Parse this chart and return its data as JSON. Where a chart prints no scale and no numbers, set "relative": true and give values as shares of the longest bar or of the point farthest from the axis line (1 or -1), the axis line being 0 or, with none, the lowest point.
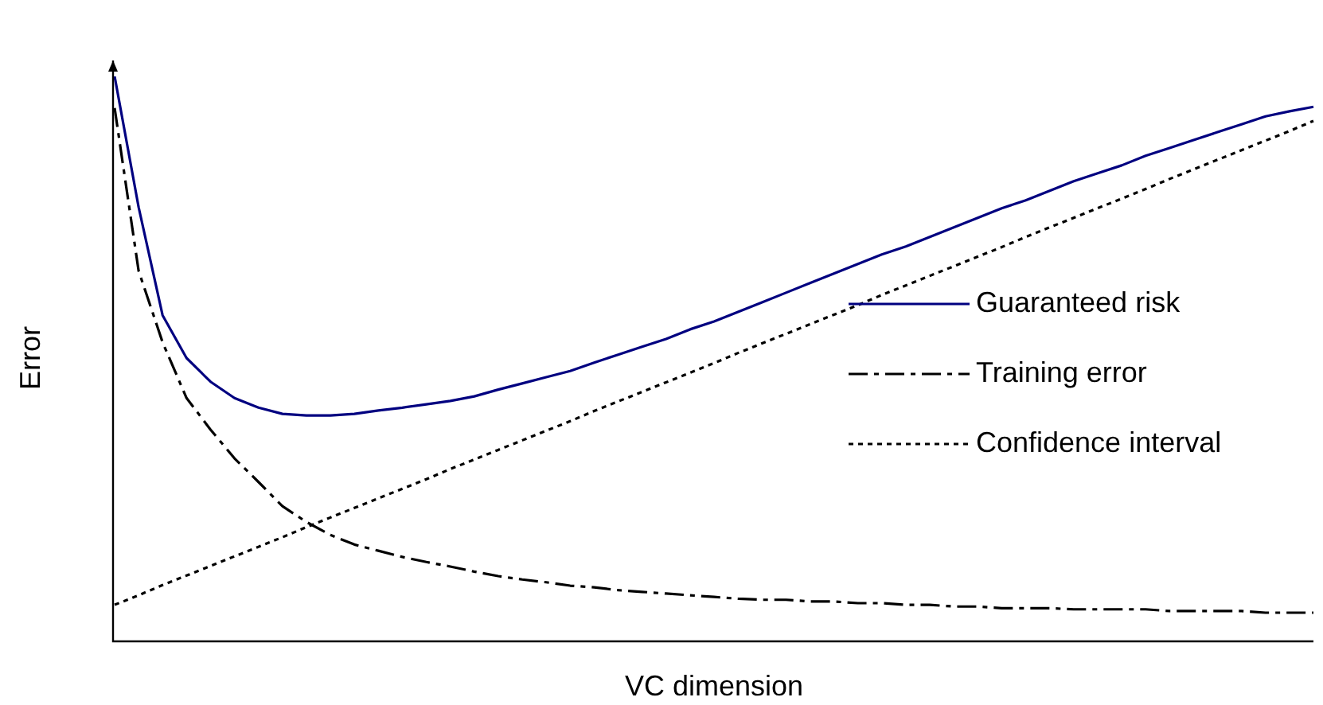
{
  "chart_data": {
    "type": "line",
    "relative": true,
    "xlabel": "VC dimension",
    "ylabel": "Error",
    "legend": "right",
    "marker": "none",
    "categories": [
      null,
      null,
      null,
      null,
      null,
      null,
      null,
      null,
      null,
      null,
      null,
      null,
      null,
      null,
      null,
      null,
      null,
      null,
      null,
      null,
      null,
      null,
      null,
      null,
      null,
      null,
      null,
      null,
      null,
      null,
      null,
      null,
      null,
      null,
      null,
      null,
      null,
      null,
      null,
      null,
      null,
      null,
      null,
      null,
      null,
      null,
      null,
      null,
      null,
      null,
      null
    ],
    "series": [
      {
        "name": "Guaranteed risk",
        "color": "#000080",
        "line_style": "solid",
        "values": [
          1.0,
          0.768,
          0.576,
          0.5,
          0.458,
          0.429,
          0.412,
          0.401,
          0.398,
          0.398,
          0.401,
          0.407,
          0.412,
          0.418,
          0.424,
          0.432,
          0.444,
          0.455,
          0.466,
          0.477,
          0.492,
          0.506,
          0.52,
          0.534,
          0.551,
          0.565,
          0.582,
          0.599,
          0.616,
          0.633,
          0.65,
          0.667,
          0.684,
          0.698,
          0.715,
          0.732,
          0.749,
          0.766,
          0.78,
          0.797,
          0.814,
          0.828,
          0.842,
          0.859,
          0.873,
          0.887,
          0.901,
          0.915,
          0.929,
          0.938,
          0.946
        ]
      },
      {
        "name": "Training error",
        "color": "#000000",
        "line_style": "dashed",
        "values": [
          0.944,
          0.655,
          0.528,
          0.429,
          0.373,
          0.322,
          0.28,
          0.237,
          0.209,
          0.186,
          0.169,
          0.158,
          0.147,
          0.138,
          0.13,
          0.121,
          0.113,
          0.107,
          0.102,
          0.096,
          0.093,
          0.088,
          0.085,
          0.082,
          0.079,
          0.076,
          0.073,
          0.071,
          0.071,
          0.068,
          0.068,
          0.065,
          0.065,
          0.062,
          0.062,
          0.059,
          0.059,
          0.056,
          0.056,
          0.056,
          0.054,
          0.054,
          0.054,
          0.054,
          0.051,
          0.051,
          0.051,
          0.051,
          0.048,
          0.048,
          0.048
        ]
      },
      {
        "name": "Confidence interval",
        "color": "#000000",
        "line_style": "dotted",
        "values": [
          0.062,
          0.079,
          0.097,
          0.114,
          0.131,
          0.148,
          0.165,
          0.182,
          0.2,
          0.217,
          0.234,
          0.251,
          0.268,
          0.285,
          0.303,
          0.32,
          0.337,
          0.354,
          0.371,
          0.388,
          0.406,
          0.423,
          0.44,
          0.457,
          0.474,
          0.491,
          0.509,
          0.526,
          0.543,
          0.56,
          0.577,
          0.594,
          0.612,
          0.629,
          0.646,
          0.663,
          0.68,
          0.697,
          0.715,
          0.732,
          0.749,
          0.766,
          0.783,
          0.8,
          0.818,
          0.835,
          0.852,
          0.869,
          0.886,
          0.903,
          0.921
        ]
      }
    ]
  }
}
